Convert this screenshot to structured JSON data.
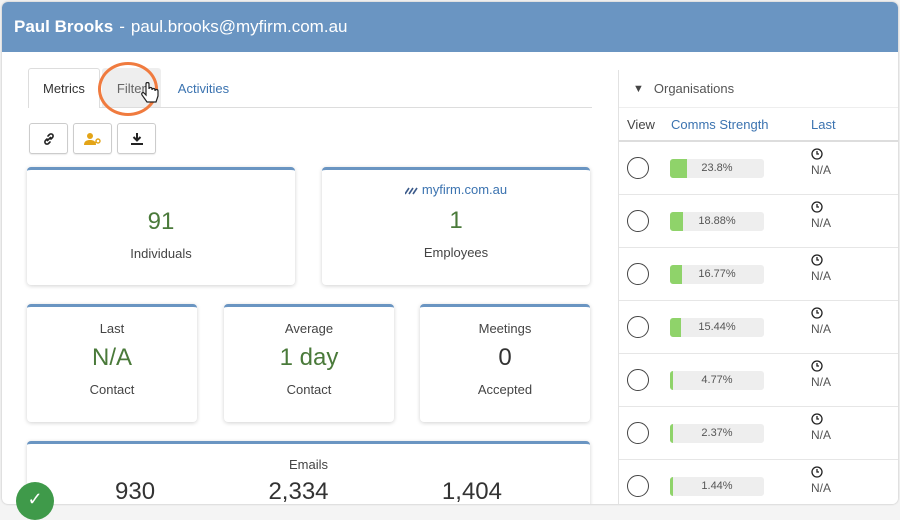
{
  "header": {
    "name": "Paul Brooks",
    "separator": "-",
    "email": "paul.brooks@myfirm.com.au"
  },
  "tabs": [
    {
      "label": "Metrics"
    },
    {
      "label": "Filter"
    },
    {
      "label": "Activities"
    }
  ],
  "toolbar": {
    "icons": [
      "link-icon",
      "user-key-icon",
      "download-icon"
    ]
  },
  "cards": {
    "individuals": {
      "value": "91",
      "label": "Individuals"
    },
    "employees": {
      "domain": "myfirm.com.au",
      "value": "1",
      "label": "Employees"
    },
    "last_contact": {
      "top": "Last",
      "value": "N/A",
      "label": "Contact"
    },
    "average_contact": {
      "top": "Average",
      "value": "1 day",
      "label": "Contact"
    },
    "meetings": {
      "top": "Meetings",
      "value": "0",
      "label": "Accepted"
    },
    "emails": {
      "top": "Emails",
      "values": [
        "930",
        "2,334",
        "1,404"
      ]
    }
  },
  "organisations": {
    "title": "Organisations",
    "columns": {
      "view": "View",
      "comms": "Comms Strength",
      "last": "Last"
    },
    "rows": [
      {
        "pct_label": "23.8%",
        "pct": 23.8,
        "last": "N/A"
      },
      {
        "pct_label": "18.88%",
        "pct": 18.88,
        "last": "N/A"
      },
      {
        "pct_label": "16.77%",
        "pct": 16.77,
        "last": "N/A"
      },
      {
        "pct_label": "15.44%",
        "pct": 15.44,
        "last": "N/A"
      },
      {
        "pct_label": "4.77%",
        "pct": 4.77,
        "last": "N/A"
      },
      {
        "pct_label": "2.37%",
        "pct": 2.37,
        "last": "N/A"
      },
      {
        "pct_label": "1.44%",
        "pct": 1.44,
        "last": "N/A"
      }
    ]
  },
  "colors": {
    "header_bg": "#6a95c2",
    "accent_green": "#4a7a3a",
    "bar_fill": "#8fd36a",
    "highlight": "#f07b3f",
    "link": "#3b73b0"
  }
}
